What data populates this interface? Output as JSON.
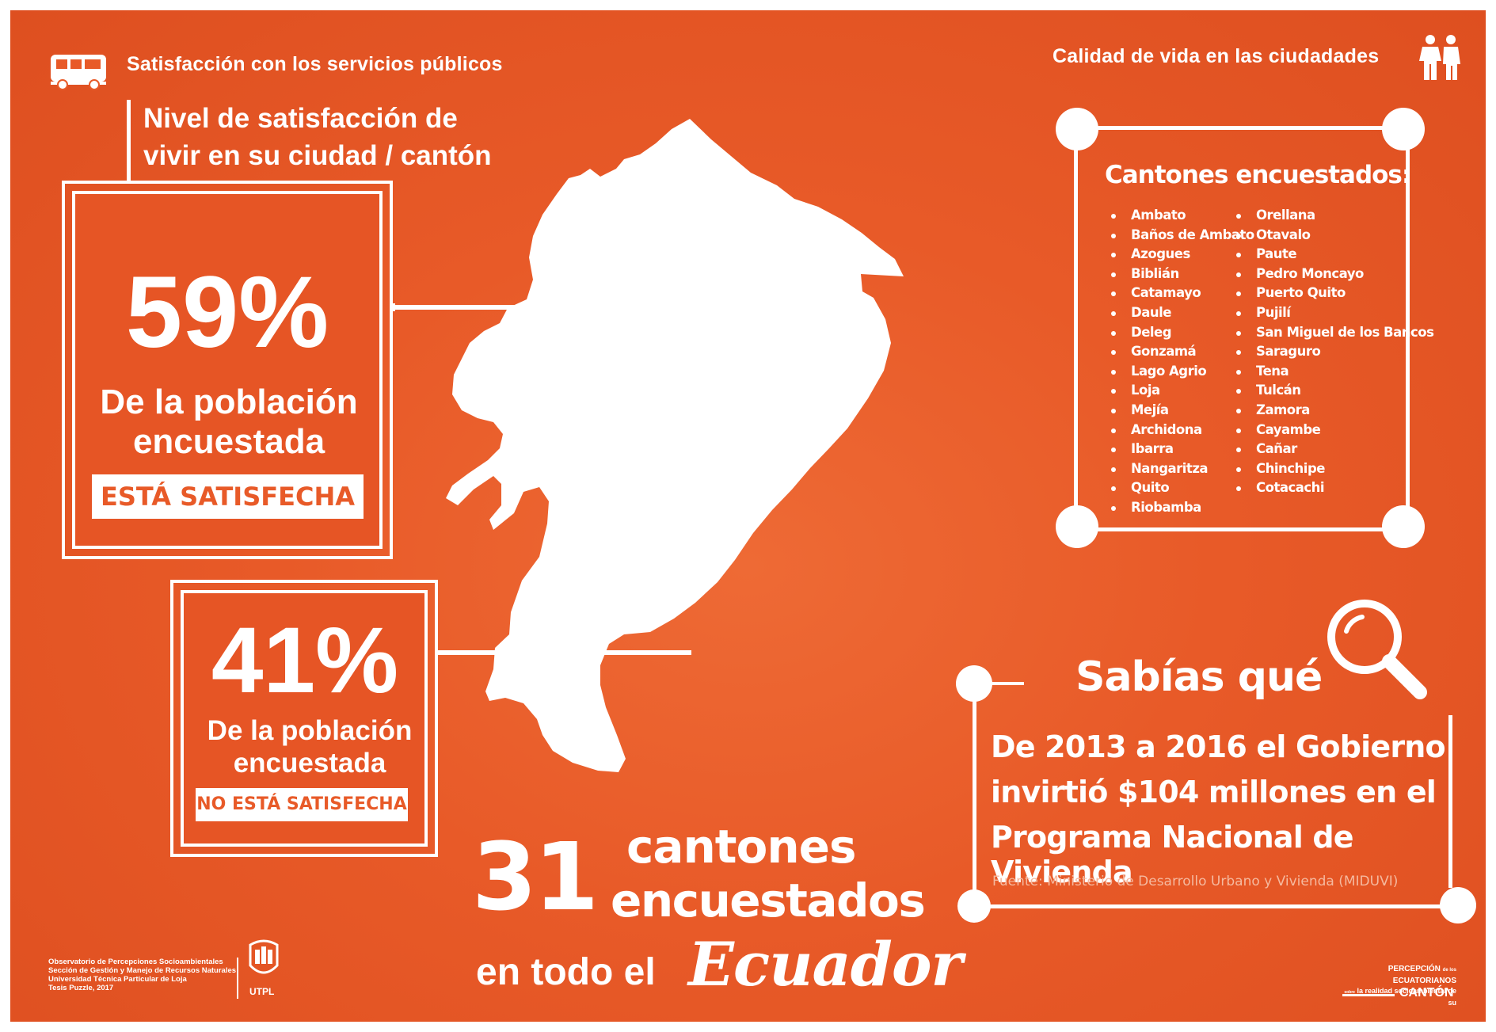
{
  "header": {
    "left_title": "Satisfacción con los servicios públicos",
    "right_title": "Calidad de vida en las ciudadades",
    "left_icon": "bus-icon",
    "right_icon": "people-icon"
  },
  "subtitle": {
    "line1": "Nivel de satisfacción de",
    "line2": "vivir en su ciudad / cantón"
  },
  "stat_satisfied": {
    "value": "59%",
    "line1": "De la población",
    "line2": "encuestada",
    "badge": "ESTÁ SATISFECHA"
  },
  "stat_not_satisfied": {
    "value": "41%",
    "line1": "De la población",
    "line2": "encuestada",
    "badge": "NO ESTÁ SATISFECHA"
  },
  "cantones": {
    "title": "Cantones encuestados:",
    "col1": [
      "Ambato",
      "Baños de Ambato",
      "Azogues",
      "Biblián",
      "Catamayo",
      "Daule",
      "Deleg",
      "Gonzamá",
      "Lago Agrio",
      "Loja",
      "Mejía",
      "Archidona",
      "Ibarra",
      "Nangaritza",
      "Quito",
      "Riobamba"
    ],
    "col2": [
      "Orellana",
      "Otavalo",
      "Paute",
      "Pedro Moncayo",
      "Puerto Quito",
      "Pujilí",
      "San Miguel de los Bancos",
      "Saraguro",
      "Tena",
      "Tulcán",
      "Zamora",
      "Cayambe",
      "Cañar",
      "Chinchipe",
      "Cotacachi"
    ]
  },
  "summary": {
    "number": "31",
    "line1": "cantones",
    "line2": "encuestados",
    "line3": "en todo el",
    "country": "Ecuador"
  },
  "fact": {
    "title": "Sabías qué",
    "line1": "De 2013 a 2016 el Gobierno",
    "line2": "invirtió $104 millones en el",
    "line3": "Programa Nacional de Vivienda",
    "source": "Fuente: Ministerio de Desarrollo Urbano y Vivienda (MIDUVI)",
    "icon": "magnifier-icon"
  },
  "footer": {
    "credits": [
      "Observatorio de Percepciones Socioambientales",
      "Sección de Gestión y Manejo de Recursos Naturales",
      "Universidad Técnica Particular de Loja",
      "Tesis Puzzle, 2017"
    ],
    "logo_text": "UTPL",
    "brand_line1a": "PERCEPCIÓN",
    "brand_small1": "de los",
    "brand_line1b": "ECUATORIANOS",
    "brand_small2": "sobre",
    "brand_line2": "la realidad socioambiental de su",
    "brand_line3": "CANTÓN"
  }
}
